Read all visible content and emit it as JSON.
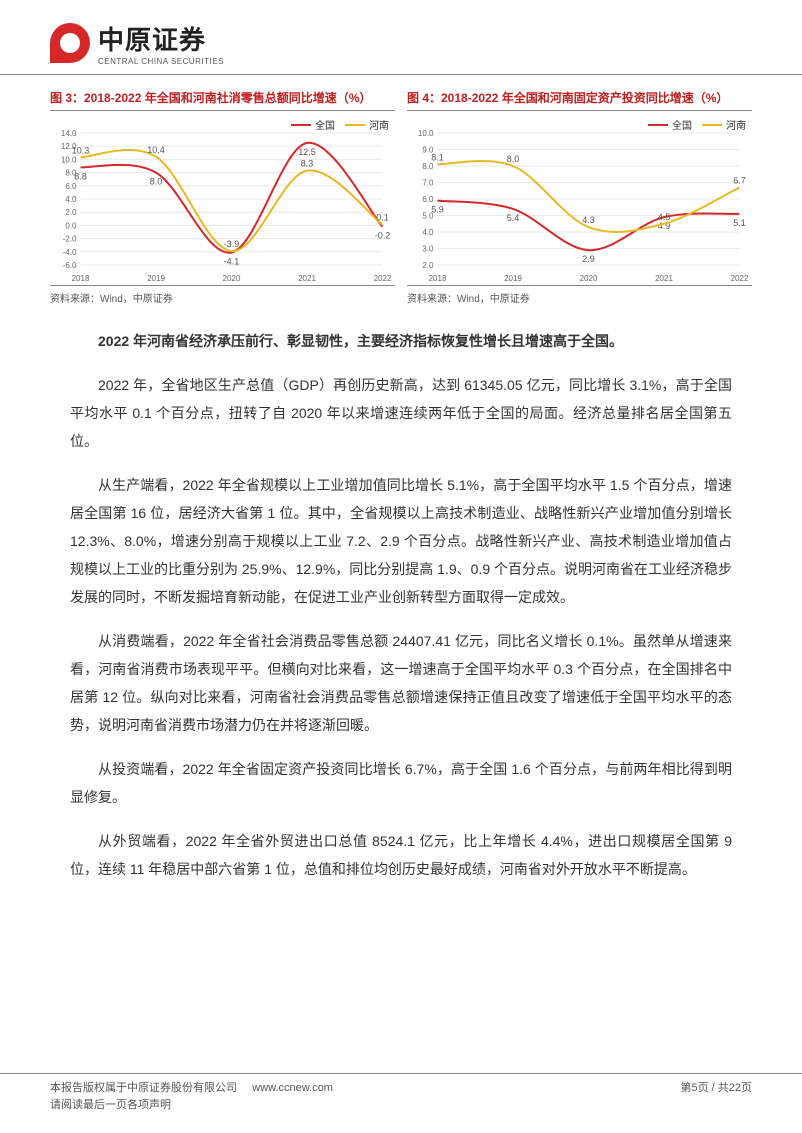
{
  "header": {
    "logo_cn": "中原证券",
    "logo_en": "CENTRAL CHINA SECURITIES"
  },
  "chart3": {
    "type": "line",
    "title": "图 3：2018-2022 年全国和河南社消零售总额同比增速（%）",
    "source": "资料来源：Wind，中原证券",
    "years": [
      "2018",
      "2019",
      "2020",
      "2021",
      "2022"
    ],
    "ylim": [
      -6.0,
      14.0
    ],
    "ytick_step": 2.0,
    "background_color": "#ffffff",
    "grid_color": "#e8e8e8",
    "line_width": 2,
    "series": [
      {
        "name": "全国",
        "color": "#d62828",
        "values": [
          8.8,
          8.0,
          -4.1,
          12.5,
          -0.2
        ],
        "labels_show": {
          "2018": "8.8",
          "2019": "8.0",
          "2020": "-4.1",
          "2021": "12.5",
          "2022": "-0.2"
        }
      },
      {
        "name": "河南",
        "color": "#e8b923",
        "values": [
          10.3,
          10.4,
          -3.9,
          8.3,
          0.1
        ],
        "labels_show": {
          "2018": "10.3",
          "2019": "10.4",
          "2020": "-3.9",
          "2021": "8.3",
          "2022": "0.1"
        }
      }
    ]
  },
  "chart4": {
    "type": "line",
    "title": "图 4：2018-2022 年全国和河南固定资产投资同比增速（%）",
    "source": "资料来源：Wind，中原证券",
    "years": [
      "2018",
      "2019",
      "2020",
      "2021",
      "2022"
    ],
    "ylim": [
      2.0,
      10.0
    ],
    "ytick_step": 1.0,
    "background_color": "#ffffff",
    "grid_color": "#e8e8e8",
    "line_width": 2,
    "series": [
      {
        "name": "全国",
        "color": "#d62828",
        "values": [
          5.9,
          5.4,
          2.9,
          4.9,
          5.1
        ],
        "labels_show": {
          "2018": "5.9",
          "2019": "5.4",
          "2020": "2.9",
          "2021": "4.9",
          "2022": "5.1"
        }
      },
      {
        "name": "河南",
        "color": "#e8b923",
        "values": [
          8.1,
          8.0,
          4.3,
          4.5,
          6.7
        ],
        "labels_show": {
          "2018": "8.1",
          "2019": "8.0",
          "2020": "4.3",
          "2021": "4.5",
          "2022": "6.7"
        }
      }
    ]
  },
  "body": {
    "lead": "2022 年河南省经济承压前行、彰显韧性，主要经济指标恢复性增长且增速高于全国。",
    "p1": "2022 年，全省地区生产总值（GDP）再创历史新高，达到 61345.05 亿元，同比增长 3.1%，高于全国平均水平 0.1 个百分点，扭转了自 2020 年以来增速连续两年低于全国的局面。经济总量排名居全国第五位。",
    "p2": "从生产端看，2022 年全省规模以上工业增加值同比增长 5.1%，高于全国平均水平 1.5 个百分点，增速居全国第 16 位，居经济大省第 1 位。其中，全省规模以上高技术制造业、战略性新兴产业增加值分别增长 12.3%、8.0%，增速分别高于规模以上工业 7.2、2.9 个百分点。战略性新兴产业、高技术制造业增加值占规模以上工业的比重分别为 25.9%、12.9%，同比分别提高 1.9、0.9 个百分点。说明河南省在工业经济稳步发展的同时，不断发掘培育新动能，在促进工业产业创新转型方面取得一定成效。",
    "p3": "从消费端看，2022 年全省社会消费品零售总额 24407.41 亿元，同比名义增长 0.1%。虽然单从增速来看，河南省消费市场表现平平。但横向对比来看，这一增速高于全国平均水平 0.3 个百分点，在全国排名中居第 12 位。纵向对比来看，河南省社会消费品零售总额增速保持正值且改变了增速低于全国平均水平的态势，说明河南省消费市场潜力仍在并将逐渐回暖。",
    "p4": "从投资端看，2022 年全省固定资产投资同比增长 6.7%，高于全国 1.6 个百分点，与前两年相比得到明显修复。",
    "p5": "从外贸端看，2022 年全省外贸进出口总值 8524.1 亿元，比上年增长 4.4%，进出口规模居全国第 9 位，连续 11 年稳居中部六省第 1 位，总值和排位均创历史最好成绩，河南省对外开放水平不断提高。"
  },
  "footer": {
    "copyright": "本报告版权属于中原证券股份有限公司",
    "notice": "请阅读最后一页各项声明",
    "url": "www.ccnew.com",
    "page": "第5页 / 共22页"
  }
}
